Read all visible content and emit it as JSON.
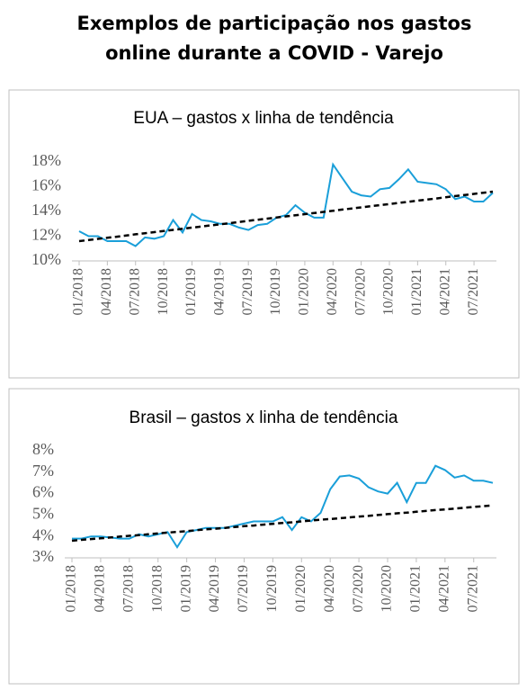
{
  "title": "Exemplos de participação nos gastos online durante a COVID - Varejo",
  "chart_data": [
    {
      "type": "line",
      "title": "EUA – gastos x linha de tendência",
      "categories": [
        "01/2018",
        null,
        null,
        "04/2018",
        null,
        null,
        "07/2018",
        null,
        null,
        "10/2018",
        null,
        null,
        "01/2019",
        null,
        null,
        "04/2019",
        null,
        null,
        "07/2019",
        null,
        null,
        "10/2019",
        null,
        null,
        "01/2020",
        null,
        null,
        "04/2020",
        null,
        null,
        "07/2020",
        null,
        null,
        "10/2020",
        null,
        null,
        "01/2021",
        null,
        null,
        "04/2021",
        null,
        null,
        "07/2021",
        null,
        null
      ],
      "series": [
        {
          "color": "#1a9fd9",
          "values": [
            12.4,
            12.0,
            12.0,
            11.6,
            11.6,
            11.6,
            11.2,
            11.9,
            11.8,
            12.0,
            13.3,
            12.3,
            13.8,
            13.3,
            13.2,
            13.0,
            13.0,
            12.7,
            12.5,
            12.9,
            13.0,
            13.5,
            13.7,
            14.5,
            13.9,
            13.5,
            13.5,
            17.8,
            16.7,
            15.6,
            15.3,
            15.2,
            15.8,
            15.9,
            16.6,
            17.4,
            16.4,
            16.3,
            16.2,
            15.8,
            15.0,
            15.2,
            14.8,
            14.8,
            15.5
          ]
        },
        {
          "color": "#000000",
          "dashed": true,
          "values": [
            11.6,
            11.69,
            11.78,
            11.87,
            11.96,
            12.05,
            12.15,
            12.24,
            12.33,
            12.42,
            12.51,
            12.6,
            12.69,
            12.78,
            12.87,
            12.96,
            13.05,
            13.15,
            13.24,
            13.33,
            13.42,
            13.51,
            13.6,
            13.69,
            13.78,
            13.87,
            13.96,
            14.05,
            14.15,
            14.24,
            14.33,
            14.42,
            14.51,
            14.6,
            14.69,
            14.78,
            14.87,
            14.96,
            15.05,
            15.15,
            15.24,
            15.33,
            15.42,
            15.51,
            15.6
          ]
        }
      ],
      "ylim": [
        10,
        18
      ],
      "yticks": [
        {
          "value": 10,
          "label": "10%"
        },
        {
          "value": 12,
          "label": "12%"
        },
        {
          "value": 14,
          "label": "14%"
        },
        {
          "value": 16,
          "label": "16%"
        },
        {
          "value": 18,
          "label": "18%"
        }
      ]
    },
    {
      "type": "line",
      "title": "Brasil – gastos x linha de tendência",
      "categories": [
        "01/2018",
        null,
        null,
        "04/2018",
        null,
        null,
        "07/2018",
        null,
        null,
        "10/2018",
        null,
        null,
        "01/2019",
        null,
        null,
        "04/2019",
        null,
        null,
        "07/2019",
        null,
        null,
        "10/2019",
        null,
        null,
        "01/2020",
        null,
        null,
        "04/2020",
        null,
        null,
        "07/2020",
        null,
        null,
        "10/2020",
        null,
        null,
        "01/2021",
        null,
        null,
        "04/2021",
        null,
        null,
        "07/2021",
        null,
        null
      ],
      "series": [
        {
          "color": "#1a9fd9",
          "values": [
            3.9,
            3.9,
            4.0,
            4.0,
            3.95,
            3.9,
            3.9,
            4.1,
            4.0,
            4.1,
            4.2,
            3.5,
            4.2,
            4.3,
            4.4,
            4.4,
            4.4,
            4.5,
            4.6,
            4.7,
            4.7,
            4.7,
            4.9,
            4.3,
            4.9,
            4.7,
            5.1,
            6.2,
            6.8,
            6.85,
            6.7,
            6.3,
            6.1,
            6.0,
            6.5,
            5.6,
            6.5,
            6.5,
            7.3,
            7.1,
            6.75,
            6.85,
            6.6,
            6.6,
            6.5
          ]
        },
        {
          "color": "#000000",
          "dashed": true,
          "values": [
            3.8,
            3.84,
            3.88,
            3.91,
            3.95,
            3.99,
            4.03,
            4.06,
            4.1,
            4.14,
            4.18,
            4.21,
            4.25,
            4.29,
            4.33,
            4.36,
            4.4,
            4.44,
            4.48,
            4.51,
            4.55,
            4.59,
            4.63,
            4.66,
            4.7,
            4.74,
            4.78,
            4.81,
            4.85,
            4.89,
            4.93,
            4.96,
            5.0,
            5.04,
            5.08,
            5.11,
            5.15,
            5.19,
            5.23,
            5.26,
            5.3,
            5.34,
            5.38,
            5.41,
            5.45
          ]
        }
      ],
      "ylim": [
        3,
        8
      ],
      "yticks": [
        {
          "value": 3,
          "label": "3%"
        },
        {
          "value": 4,
          "label": "4%"
        },
        {
          "value": 5,
          "label": "5%"
        },
        {
          "value": 6,
          "label": "6%"
        },
        {
          "value": 7,
          "label": "7%"
        },
        {
          "value": 8,
          "label": "8%"
        }
      ]
    }
  ]
}
